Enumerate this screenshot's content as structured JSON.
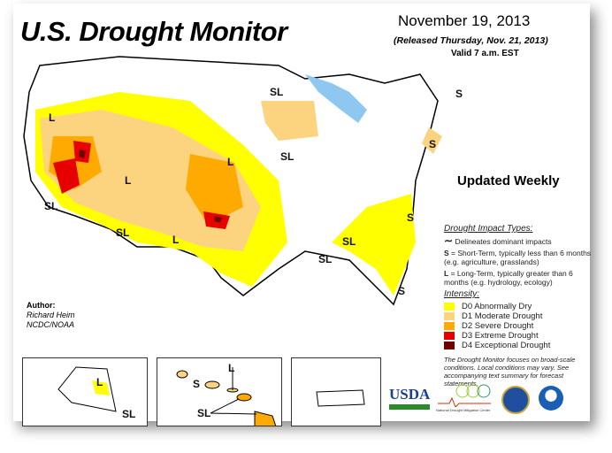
{
  "header": {
    "title": "U.S. Drought Monitor",
    "date": "November 19, 2013",
    "released": "(Released Thursday, Nov. 21, 2013)",
    "valid": "Valid 7 a.m. EST"
  },
  "updated": "Updated Weekly",
  "legend": {
    "impact_title": "Drought Impact Types:",
    "delineates": "Delineates dominant impacts",
    "s_key": "S",
    "s_text": " = Short-Term, typically less than 6 months (e.g. agriculture, grasslands)",
    "l_key": "L",
    "l_text": " = Long-Term, typically greater than 6 months (e.g. hydrology, ecology)",
    "intensity_title": "Intensity:",
    "items": [
      {
        "label": "D0 Abnormally Dry",
        "color": "#ffff00"
      },
      {
        "label": "D1 Moderate Drought",
        "color": "#fcd37f"
      },
      {
        "label": "D2 Severe Drought",
        "color": "#ffaa00"
      },
      {
        "label": "D3 Extreme Drought",
        "color": "#e60000"
      },
      {
        "label": "D4 Exceptional Drought",
        "color": "#730000"
      }
    ],
    "note": "The Drought Monitor focuses on broad-scale conditions. Local conditions may vary. See accompanying text summary for forecast statements."
  },
  "author": {
    "label": "Author:",
    "name": "Richard Heim",
    "org": "NCDC/NOAA"
  },
  "map_labels": {
    "s": "S",
    "l": "L",
    "sl": "SL"
  },
  "logos": {
    "usda": "USDA",
    "ndmc": "National Drought Mitigation Center"
  }
}
